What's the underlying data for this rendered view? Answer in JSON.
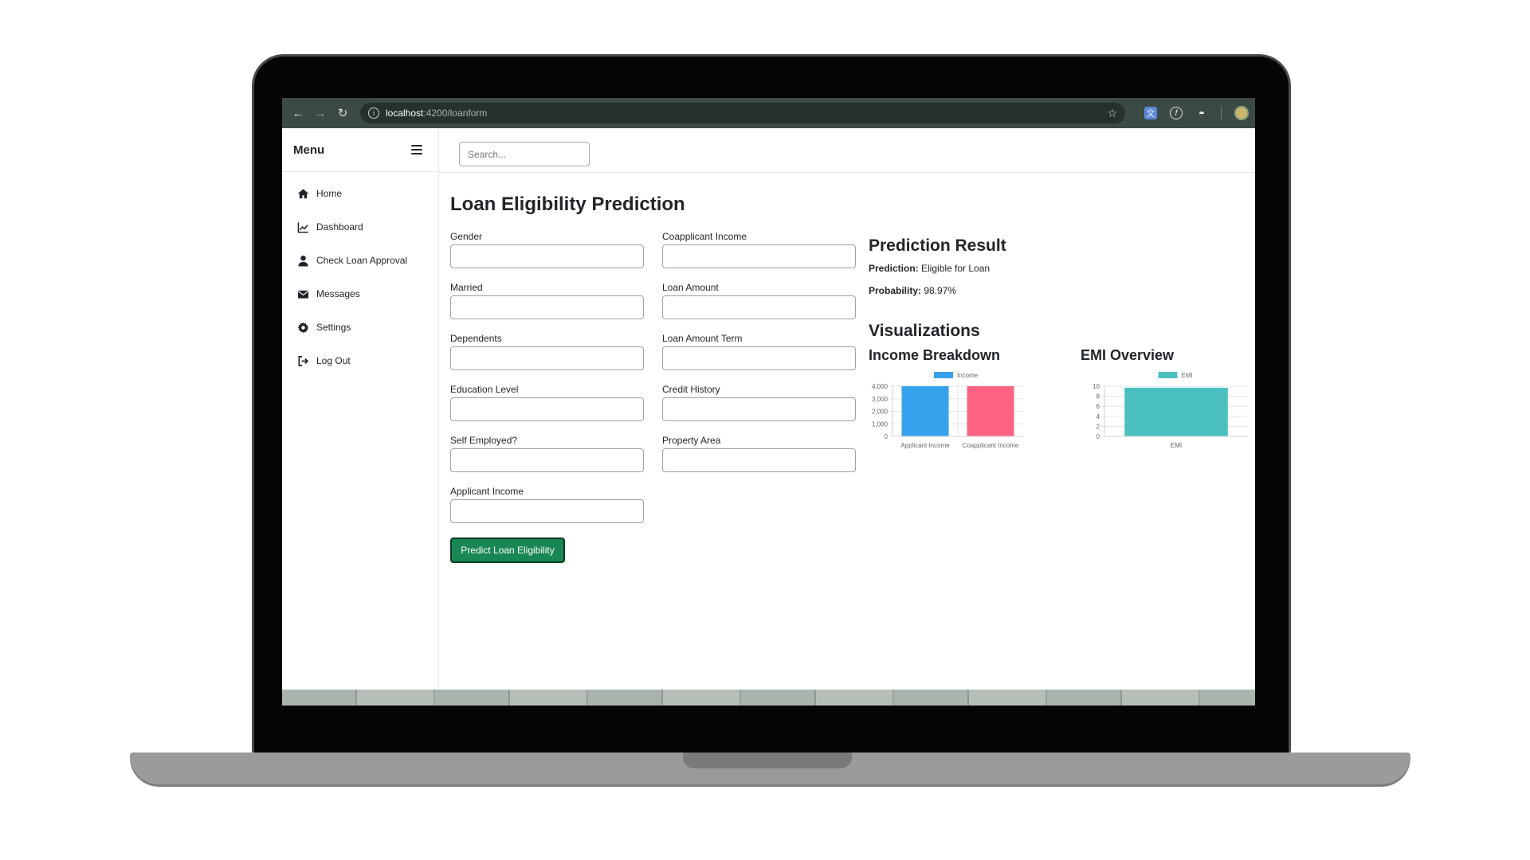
{
  "browser": {
    "url_host": "localhost",
    "url_path": ":4200/loanform"
  },
  "sidebar": {
    "title": "Menu",
    "items": [
      {
        "label": "Home",
        "icon": "home-icon"
      },
      {
        "label": "Dashboard",
        "icon": "chart-line-icon"
      },
      {
        "label": "Check Loan Approval",
        "icon": "user-icon"
      },
      {
        "label": "Messages",
        "icon": "envelope-icon"
      },
      {
        "label": "Settings",
        "icon": "gear-icon"
      },
      {
        "label": "Log Out",
        "icon": "logout-icon"
      }
    ]
  },
  "search": {
    "placeholder": "Search..."
  },
  "page": {
    "title": "Loan Eligibility Prediction"
  },
  "form": {
    "fields": [
      {
        "label": "Gender",
        "value": ""
      },
      {
        "label": "Married",
        "value": ""
      },
      {
        "label": "Dependents",
        "value": ""
      },
      {
        "label": "Education Level",
        "value": ""
      },
      {
        "label": "Self Employed?",
        "value": ""
      },
      {
        "label": "Applicant Income",
        "value": ""
      },
      {
        "label": "Coapplicant Income",
        "value": ""
      },
      {
        "label": "Loan Amount",
        "value": ""
      },
      {
        "label": "Loan Amount Term",
        "value": ""
      },
      {
        "label": "Credit History",
        "value": ""
      },
      {
        "label": "Property Area",
        "value": ""
      }
    ],
    "submit_label": "Predict Loan Eligibility"
  },
  "result": {
    "title": "Prediction Result",
    "prediction_label": "Prediction:",
    "prediction_value": "Eligible for Loan",
    "probability_label": "Probability:",
    "probability_value": "98.97%"
  },
  "visualizations": {
    "title": "Visualizations"
  },
  "colors": {
    "accent_green": "#198754",
    "income_applicant": "#36a2eb",
    "income_coapplicant": "#ff6384",
    "emi": "#4bc0c0"
  },
  "chart_data": [
    {
      "type": "bar",
      "title": "Income Breakdown",
      "categories": [
        "Applicant Income",
        "Coapplicant Income"
      ],
      "series": [
        {
          "name": "Income",
          "values": [
            4000,
            4000
          ]
        }
      ],
      "ylim": [
        0,
        4000
      ],
      "yticks": [
        0,
        1000,
        2000,
        3000,
        4000
      ],
      "ytick_labels": [
        "0",
        "1,000",
        "2,000",
        "3,000",
        "4,000"
      ],
      "bar_colors": [
        "#36a2eb",
        "#ff6384"
      ],
      "grid": true,
      "legend": "top"
    },
    {
      "type": "bar",
      "title": "EMI Overview",
      "categories": [
        "EMI"
      ],
      "series": [
        {
          "name": "EMI",
          "values": [
            9.7
          ]
        }
      ],
      "ylim": [
        0,
        10
      ],
      "yticks": [
        0,
        2,
        4,
        6,
        8,
        10
      ],
      "ytick_labels": [
        "0",
        "2",
        "4",
        "6",
        "8",
        "10"
      ],
      "bar_colors": [
        "#4bc0c0"
      ],
      "grid": true,
      "legend": "top"
    }
  ]
}
